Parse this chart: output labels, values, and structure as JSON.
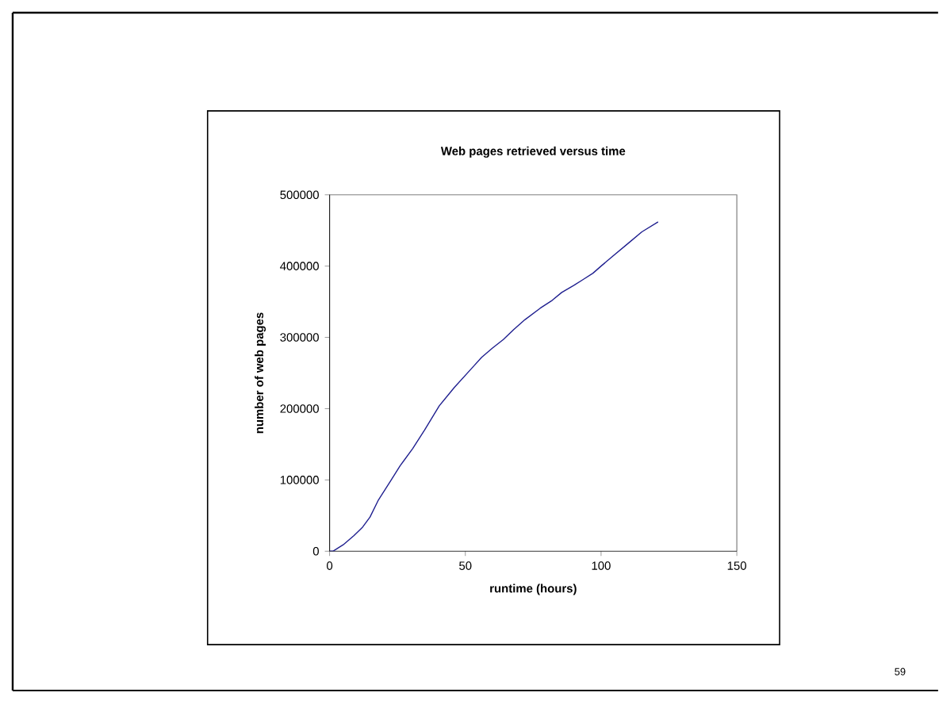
{
  "chart_data": {
    "type": "line",
    "title": "Web pages retrieved versus time",
    "xlabel": "runtime (hours)",
    "ylabel": "number of web pages",
    "xlim": [
      0,
      150
    ],
    "xticks": [
      0,
      50,
      100,
      150
    ],
    "ylim": [
      0,
      500000
    ],
    "yticks": [
      0,
      100000,
      200000,
      300000,
      400000,
      500000
    ],
    "grid": false,
    "marker": "none",
    "line_style": "solid",
    "annotations": [
      "59"
    ],
    "series": [
      {
        "color": "#1f1f8f",
        "x": [
          0,
          1.2,
          5,
          9,
          12,
          14.9,
          18,
          22.7,
          26,
          30.6,
          35,
          40.4,
          46,
          52.2,
          56,
          60,
          64,
          67.8,
          72,
          77.6,
          82,
          85.5,
          90,
          93.3,
          97,
          100,
          104,
          110,
          115,
          121
        ],
        "values": [
          0,
          0,
          9000,
          22000,
          33000,
          48000,
          72000,
          100000,
          120000,
          144000,
          170000,
          204000,
          230000,
          256000,
          272000,
          285000,
          297000,
          311000,
          325000,
          341000,
          352000,
          363000,
          373000,
          381000,
          390000,
          400000,
          413000,
          432000,
          448000,
          462000
        ]
      }
    ]
  }
}
